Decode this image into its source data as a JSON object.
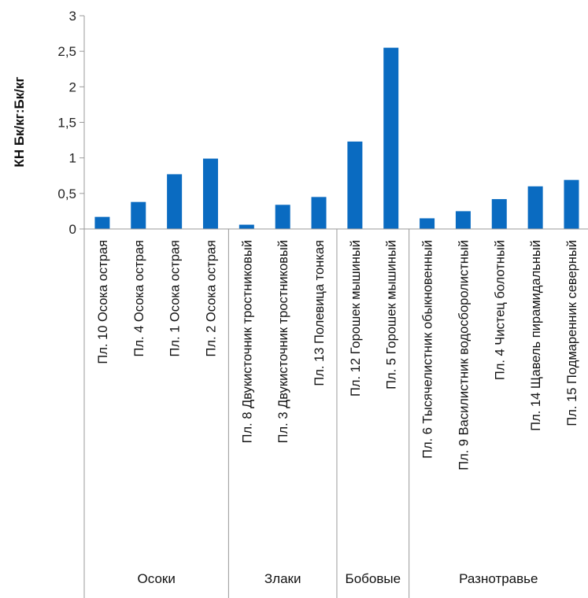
{
  "chart_data": {
    "type": "bar",
    "title": "",
    "ylabel": "КН Бк/кг:Бк/кг",
    "xlabel": "",
    "ylim": [
      0,
      3
    ],
    "yticks": [
      "0",
      "0,5",
      "1",
      "1,5",
      "2",
      "2,5",
      "3"
    ],
    "grid": false,
    "legend": "none",
    "bar_color": "#0a6bc1",
    "categories": [
      "Пл. 10  Осока острая",
      "Пл. 4  Осока острая",
      "Пл. 1  Осока острая",
      "Пл. 2  Осока острая",
      "Пл. 8  Двукисточник тростниковый",
      "Пл. 3  Двукисточник тростниковый",
      "Пл. 13  Полевица тонкая",
      "Пл. 12  Горошек мышиный",
      "Пл. 5  Горошек мышиный",
      "Пл. 6  Тысячелистник обыкновенный",
      "Пл. 9  Василистник водосборолистный",
      "Пл. 4  Чистец болотный",
      "Пл. 14 Щавель пирамидальный",
      "Пл. 15  Подмаренник северный"
    ],
    "values": [
      0.17,
      0.38,
      0.77,
      0.99,
      0.06,
      0.34,
      0.45,
      1.23,
      2.55,
      0.15,
      0.25,
      0.42,
      0.6,
      0.69
    ],
    "groups": [
      {
        "name": "Осоки",
        "count": 4
      },
      {
        "name": "Злаки",
        "count": 3
      },
      {
        "name": "Бобовые",
        "count": 2
      },
      {
        "name": "Разнотравье",
        "count": 5
      }
    ]
  }
}
